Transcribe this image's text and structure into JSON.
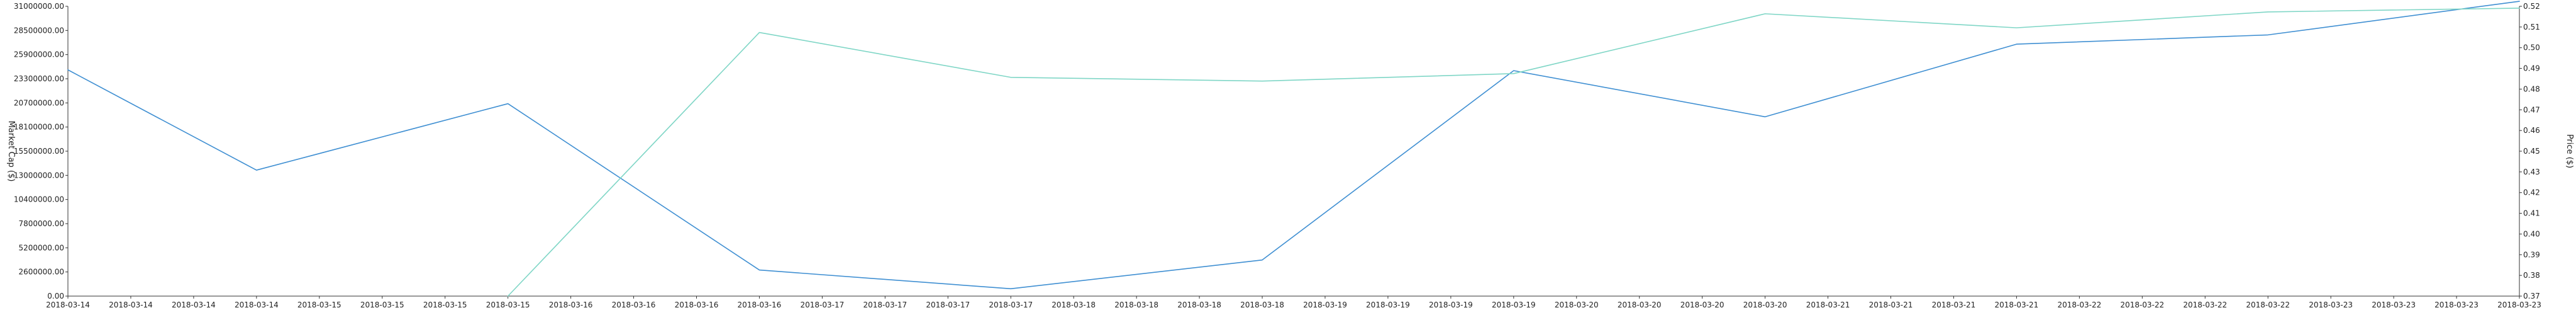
{
  "chart_data": {
    "type": "line",
    "title": "",
    "xlabel": "",
    "ylabel_left": "Market Cap ($)",
    "ylabel_right": "Price ($)",
    "grid": false,
    "x_ticks": [
      "2018-03-14",
      "2018-03-14",
      "2018-03-14",
      "2018-03-14",
      "2018-03-15",
      "2018-03-15",
      "2018-03-15",
      "2018-03-15",
      "2018-03-16",
      "2018-03-16",
      "2018-03-16",
      "2018-03-16",
      "2018-03-17",
      "2018-03-17",
      "2018-03-17",
      "2018-03-17",
      "2018-03-18",
      "2018-03-18",
      "2018-03-18",
      "2018-03-18",
      "2018-03-19",
      "2018-03-19",
      "2018-03-19",
      "2018-03-19",
      "2018-03-20",
      "2018-03-20",
      "2018-03-20",
      "2018-03-20",
      "2018-03-21",
      "2018-03-21",
      "2018-03-21",
      "2018-03-21",
      "2018-03-22",
      "2018-03-22",
      "2018-03-22",
      "2018-03-22",
      "2018-03-23",
      "2018-03-23",
      "2018-03-23",
      "2018-03-23"
    ],
    "y_left_ticks": [
      "0.00",
      "2600000.00",
      "5200000.00",
      "7800000.00",
      "10400000.00",
      "13000000.00",
      "15500000.00",
      "18100000.00",
      "20700000.00",
      "23300000.00",
      "25900000.00",
      "28500000.00",
      "31000000.00"
    ],
    "y_left_range": [
      0,
      31000000
    ],
    "y_right_ticks": [
      "0.37",
      "0.38",
      "0.39",
      "0.40",
      "0.41",
      "0.42",
      "0.43",
      "0.45",
      "0.46",
      "0.47",
      "0.48",
      "0.49",
      "0.50",
      "0.51",
      "0.52"
    ],
    "y_right_range": [
      0.37,
      0.52
    ],
    "series": [
      {
        "name": "",
        "axis": "right",
        "color": "#3f8fd2",
        "x_index": [
          0,
          3,
          7,
          11,
          15,
          19,
          23,
          27,
          31,
          35,
          39
        ],
        "values": [
          0.4871,
          0.4352,
          0.4696,
          0.3835,
          0.3738,
          0.3887,
          0.4867,
          0.4628,
          0.5004,
          0.5052,
          0.5226
        ]
      },
      {
        "name": "",
        "axis": "left",
        "color": "#7fd6c6",
        "x_index": [
          7,
          11,
          15,
          19,
          23,
          27,
          31,
          35,
          39
        ],
        "values": [
          0,
          28200000,
          23400000,
          23000000,
          23800000,
          30200000,
          28700000,
          30400000,
          30800000
        ]
      }
    ]
  }
}
